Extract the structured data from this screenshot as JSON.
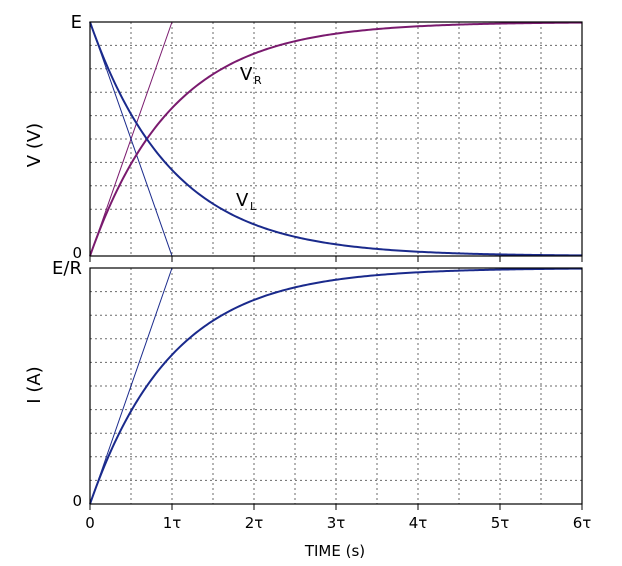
{
  "chart_data": [
    {
      "type": "line",
      "ylabel": "V (V)",
      "yticks": [
        "E",
        "0"
      ],
      "xlim": [
        0,
        6
      ],
      "ylim": [
        0,
        1
      ],
      "grid": true,
      "series": [
        {
          "label_main": "V",
          "label_sub": "R",
          "color": "#7a1a6e",
          "x": [
            0,
            0.25,
            0.5,
            0.75,
            1,
            1.5,
            2,
            2.5,
            3,
            3.5,
            4,
            4.5,
            5,
            5.5,
            6
          ],
          "values": [
            0,
            0.221,
            0.393,
            0.528,
            0.632,
            0.777,
            0.865,
            0.918,
            0.95,
            0.97,
            0.982,
            0.989,
            0.993,
            0.996,
            0.998
          ]
        },
        {
          "label_main": "V",
          "label_sub": "L",
          "color": "#1a2a8c",
          "x": [
            0,
            0.25,
            0.5,
            0.75,
            1,
            1.5,
            2,
            2.5,
            3,
            3.5,
            4,
            4.5,
            5,
            5.5,
            6
          ],
          "values": [
            1,
            0.779,
            0.607,
            0.472,
            0.368,
            0.223,
            0.135,
            0.082,
            0.05,
            0.03,
            0.018,
            0.011,
            0.007,
            0.004,
            0.002
          ]
        }
      ],
      "tangents": [
        {
          "from": [
            0,
            0
          ],
          "to": [
            1,
            1
          ],
          "color": "#7a1a6e"
        },
        {
          "from": [
            0,
            1
          ],
          "to": [
            1,
            0
          ],
          "color": "#1a2a8c"
        }
      ]
    },
    {
      "type": "line",
      "ylabel": "I (A)",
      "yticks": [
        "E/R",
        "0"
      ],
      "xlabel": "TIME (s)",
      "xticks": [
        "0",
        "1τ",
        "2τ",
        "3τ",
        "4τ",
        "5τ",
        "6τ"
      ],
      "xlim": [
        0,
        6
      ],
      "ylim": [
        0,
        1
      ],
      "grid": true,
      "series": [
        {
          "color": "#1a2a8c",
          "x": [
            0,
            0.25,
            0.5,
            0.75,
            1,
            1.5,
            2,
            2.5,
            3,
            3.5,
            4,
            4.5,
            5,
            5.5,
            6
          ],
          "values": [
            0,
            0.221,
            0.393,
            0.528,
            0.632,
            0.777,
            0.865,
            0.918,
            0.95,
            0.97,
            0.982,
            0.989,
            0.993,
            0.996,
            0.998
          ]
        }
      ],
      "tangents": [
        {
          "from": [
            0,
            0
          ],
          "to": [
            1,
            1
          ],
          "color": "#1a2a8c"
        }
      ]
    }
  ]
}
